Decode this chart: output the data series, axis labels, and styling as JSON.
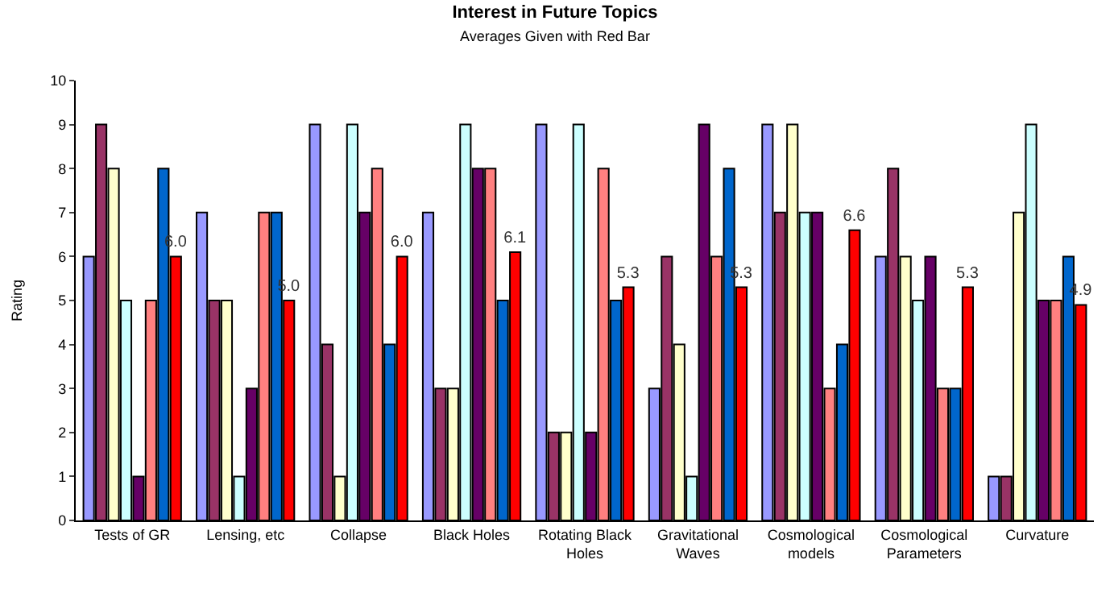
{
  "chart_data": {
    "type": "bar",
    "title": "Interest in Future Topics",
    "subtitle": "Averages Given with Red Bar",
    "ylabel": "Rating",
    "categories": [
      "Tests of GR",
      "Lensing, etc",
      "Collapse",
      "Black Holes",
      "Rotating Black\nHoles",
      "Gravitational\nWaves",
      "Cosmological\nmodels",
      "Cosmological\nParameters",
      "Curvature"
    ],
    "series": [
      {
        "color": "#9999ff",
        "values": [
          6,
          7,
          9,
          7,
          9,
          3,
          9,
          6,
          1
        ]
      },
      {
        "color": "#993366",
        "values": [
          9,
          5,
          4,
          3,
          2,
          6,
          7,
          8,
          1
        ]
      },
      {
        "color": "#ffffcc",
        "values": [
          8,
          5,
          1,
          3,
          2,
          4,
          9,
          6,
          7
        ]
      },
      {
        "color": "#ccffff",
        "values": [
          5,
          1,
          9,
          9,
          9,
          1,
          7,
          5,
          9
        ]
      },
      {
        "color": "#660066",
        "values": [
          1,
          3,
          7,
          8,
          2,
          9,
          7,
          6,
          5
        ]
      },
      {
        "color": "#ff8080",
        "values": [
          5,
          7,
          8,
          8,
          8,
          6,
          3,
          3,
          5
        ]
      },
      {
        "color": "#0066cc",
        "values": [
          8,
          7,
          4,
          5,
          5,
          8,
          4,
          3,
          6
        ]
      },
      {
        "color": "#ff0000",
        "values": [
          6.0,
          5.0,
          6.0,
          6.1,
          5.3,
          5.3,
          6.6,
          5.3,
          4.9
        ],
        "value_labels": [
          "6.0",
          "5.0",
          "6.0",
          "6.1",
          "5.3",
          "5.3",
          "6.6",
          "5.3",
          "4.9"
        ]
      }
    ],
    "ylim": [
      0,
      10
    ],
    "yticks": [
      0,
      1,
      2,
      3,
      4,
      5,
      6,
      7,
      8,
      9,
      10
    ],
    "grid": false
  }
}
